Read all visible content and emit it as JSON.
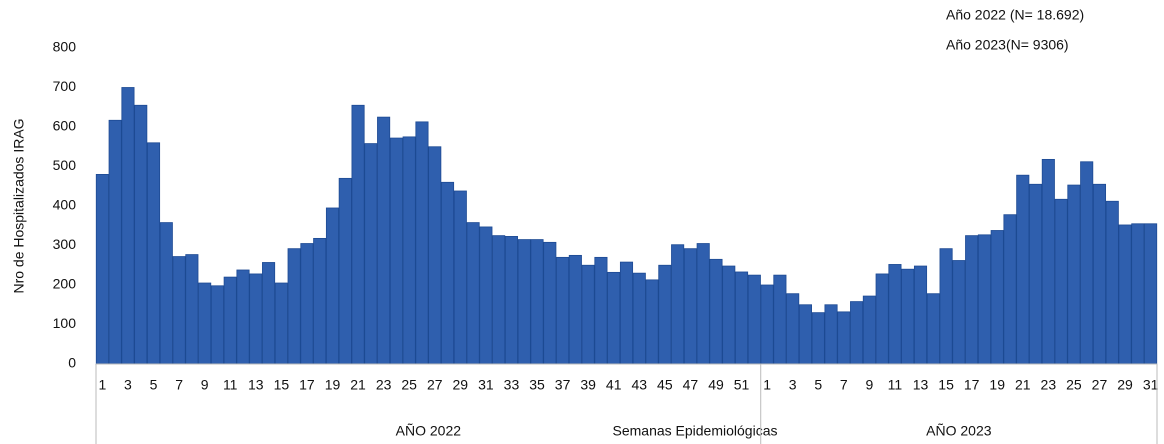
{
  "chart_data": {
    "type": "bar",
    "y_label": "Nro de Hospitalizados IRAG",
    "x_label": "Semanas Epidemiológicas",
    "annotations": [
      "Año 2022 (N= 18.692)",
      "Año 2023(N= 9306)"
    ],
    "color": "#2f5fae",
    "ylim": [
      0,
      800
    ],
    "yticks": [
      0,
      100,
      200,
      300,
      400,
      500,
      600,
      700,
      800
    ],
    "groups": [
      {
        "name": "AÑO 2022",
        "categories": [
          "1",
          null,
          "3",
          null,
          "5",
          null,
          "7",
          null,
          "9",
          null,
          "11",
          null,
          "13",
          null,
          "15",
          null,
          "17",
          null,
          "19",
          null,
          "21",
          null,
          "23",
          null,
          "25",
          null,
          "27",
          null,
          "29",
          null,
          "31",
          null,
          "33",
          null,
          "35",
          null,
          "37",
          null,
          "39",
          null,
          "41",
          null,
          "43",
          null,
          "45",
          null,
          "47",
          null,
          "49",
          null,
          "51",
          null
        ],
        "values": [
          480,
          617,
          700,
          655,
          560,
          358,
          272,
          277,
          205,
          198,
          220,
          238,
          228,
          257,
          205,
          292,
          305,
          318,
          395,
          470,
          655,
          558,
          625,
          572,
          575,
          613,
          550,
          460,
          438,
          358,
          347,
          325,
          323,
          315,
          315,
          308,
          270,
          275,
          250,
          270,
          232,
          258,
          230,
          213,
          250,
          302,
          292,
          305,
          265,
          248,
          233,
          225
        ]
      },
      {
        "name": "AÑO 2023",
        "categories": [
          "1",
          null,
          "3",
          null,
          "5",
          null,
          "7",
          null,
          "9",
          null,
          "11",
          null,
          "13",
          null,
          "15",
          null,
          "17",
          null,
          "19",
          null,
          "21",
          null,
          "23",
          null,
          "25",
          null,
          "27",
          null,
          "29",
          null,
          "31"
        ],
        "values": [
          200,
          225,
          178,
          150,
          130,
          150,
          132,
          158,
          172,
          228,
          252,
          240,
          248,
          178,
          292,
          262,
          325,
          327,
          338,
          378,
          478,
          455,
          518,
          417,
          453,
          512,
          455,
          412,
          352,
          355,
          355
        ]
      }
    ]
  }
}
